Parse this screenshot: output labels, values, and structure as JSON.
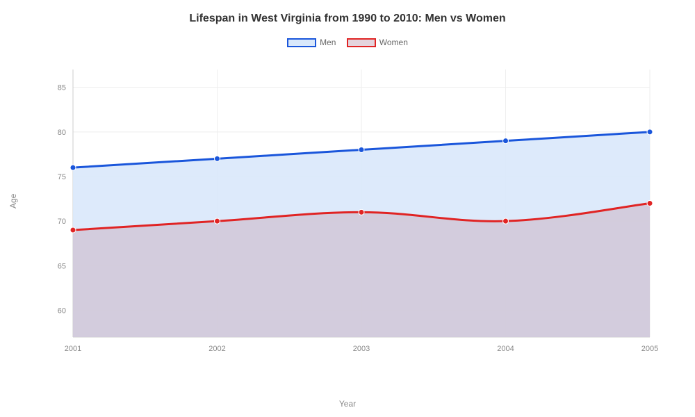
{
  "chart": {
    "type": "line-area",
    "title": "Lifespan in West Virginia from 1990 to 2010: Men vs Women",
    "title_fontsize": 16,
    "title_color": "#333333",
    "background_color": "#ffffff",
    "plot_background": "#ffffff",
    "grid_color": "#eeeeee",
    "axis_color": "#cccccc",
    "tick_label_color": "#888888",
    "xlabel": "Year",
    "ylabel": "Age",
    "label_fontsize": 12,
    "x_categories": [
      "2001",
      "2002",
      "2003",
      "2004",
      "2005"
    ],
    "ylim": [
      57,
      87
    ],
    "yticks": [
      60,
      65,
      70,
      75,
      80,
      85
    ],
    "legend": {
      "position": "top",
      "items": [
        {
          "label": "Men",
          "color": "#1a56db",
          "fill": "#d9e8fb"
        },
        {
          "label": "Women",
          "color": "#e02424",
          "fill": "#e4d4dd"
        }
      ]
    },
    "series": [
      {
        "name": "Men",
        "values": [
          76,
          77,
          78,
          79,
          80
        ],
        "line_color": "#1a56db",
        "fill_color": "#d9e8fb",
        "fill_opacity": 0.9,
        "line_width": 3,
        "marker_radius": 4,
        "marker_fill": "#1a56db",
        "curve": "monotone"
      },
      {
        "name": "Women",
        "values": [
          69,
          70,
          71,
          70,
          72
        ],
        "line_color": "#e02424",
        "fill_color": "#c8a8b8",
        "fill_opacity": 0.45,
        "line_width": 3,
        "marker_radius": 4,
        "marker_fill": "#e02424",
        "curve": "monotone"
      }
    ]
  }
}
